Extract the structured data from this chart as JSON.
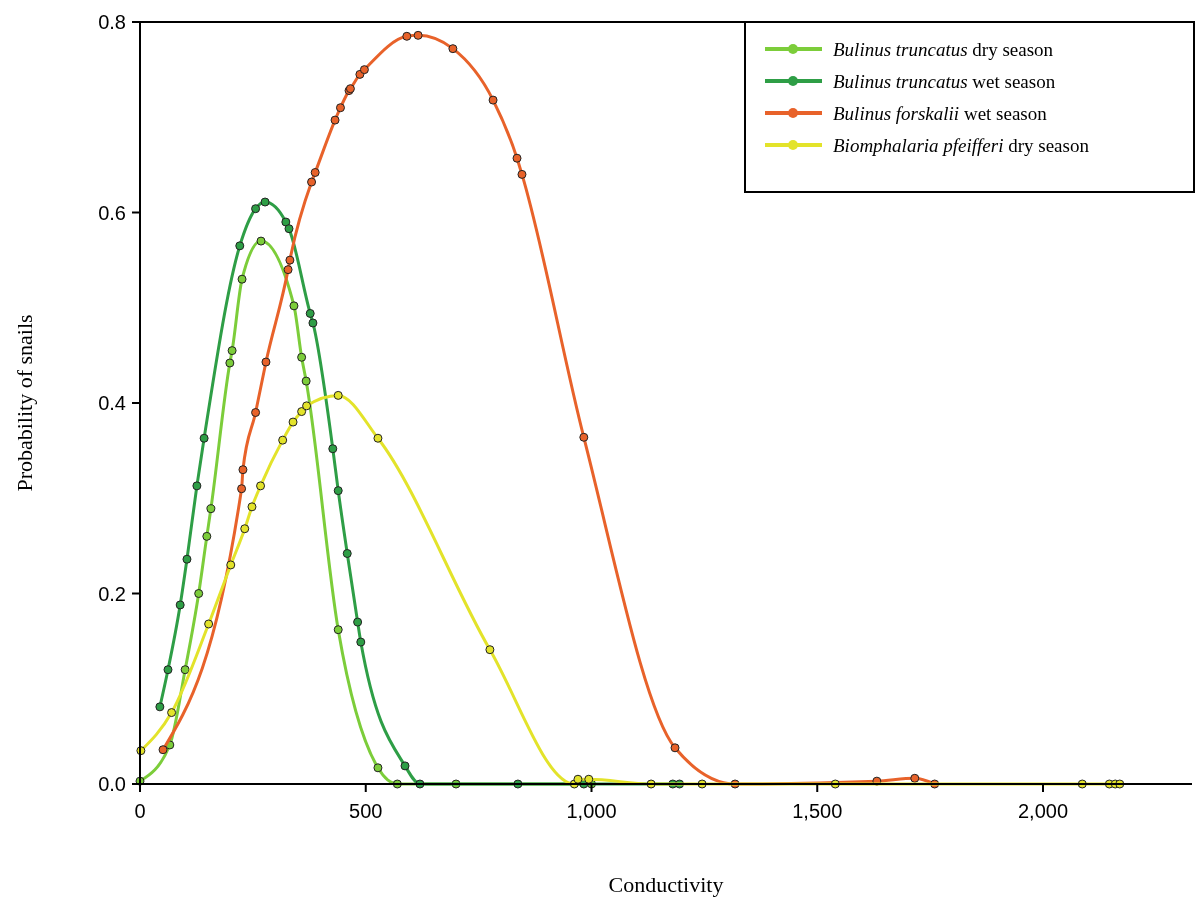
{
  "chart_data": {
    "type": "line",
    "xlabel": "Conductivity",
    "ylabel": "Probability of snails",
    "xlim": [
      0,
      2330
    ],
    "ylim": [
      0,
      0.8
    ],
    "xticks": [
      0,
      500,
      {
        "value": 1000,
        "label": "1,000"
      },
      {
        "value": 1500,
        "label": "1,500"
      },
      {
        "value": 2000,
        "label": "2,000"
      }
    ],
    "yticks": [
      {
        "value": 0,
        "label": "0.0"
      },
      {
        "value": 0.2,
        "label": "0.2"
      },
      {
        "value": 0.4,
        "label": "0.4"
      },
      {
        "value": 0.6,
        "label": "0.6"
      },
      {
        "value": 0.8,
        "label": "0.8"
      }
    ],
    "legend": "top right",
    "marker": "circle",
    "line_style": "solid",
    "grid": false,
    "series": [
      {
        "name": "Bulinus truncatus dry season",
        "color": "#7ccd3a",
        "x": [
          0,
          66,
          100,
          130,
          148,
          157,
          199,
          204,
          226,
          268,
          319,
          341,
          358,
          368,
          439,
          527,
          570,
          700,
          1000
        ],
        "values": [
          0.003,
          0.041,
          0.12,
          0.2,
          0.26,
          0.289,
          0.442,
          0.455,
          0.53,
          0.57,
          null,
          0.502,
          0.448,
          0.423,
          0.162,
          0.017,
          0,
          0,
          0
        ]
      },
      {
        "name": "Bulinus truncatus wet season",
        "color": "#2e9e46",
        "x": [
          44,
          62,
          89,
          104,
          126,
          142,
          221,
          256,
          277,
          323,
          330,
          377,
          383,
          427,
          439,
          459,
          482,
          489,
          587,
          620,
          837,
          983,
          1180,
          1195
        ],
        "values": [
          0.081,
          0.12,
          0.188,
          0.236,
          0.313,
          0.363,
          0.565,
          0.604,
          0.611,
          0.59,
          0.583,
          0.494,
          0.484,
          0.352,
          0.308,
          0.242,
          0.17,
          0.149,
          0.019,
          0,
          0,
          0,
          0,
          0
        ]
      },
      {
        "name": "Bulinus forskalii wet season",
        "color": "#e8622a",
        "x": [
          51,
          225,
          228,
          256,
          279,
          328,
          332,
          380,
          388,
          432,
          444,
          463,
          466,
          487,
          497,
          591,
          616,
          693,
          782,
          835,
          846,
          983,
          1185,
          1318,
          1632,
          1716,
          1760
        ],
        "values": [
          0.036,
          0.31,
          0.33,
          0.39,
          0.443,
          0.54,
          0.55,
          0.632,
          0.642,
          0.697,
          0.71,
          0.728,
          0.73,
          0.745,
          0.75,
          0.785,
          0.786,
          0.772,
          0.718,
          0.657,
          0.64,
          0.364,
          0.038,
          0,
          0.003,
          0.006,
          0
        ]
      },
      {
        "name": "Biomphalaria pfeifferi dry season",
        "color": "#e3e32a",
        "x": [
          2,
          70,
          152,
          201,
          232,
          248,
          267,
          316,
          339,
          358,
          369,
          439,
          527,
          775,
          962,
          970,
          994,
          1132,
          1245,
          1540,
          2087,
          2147,
          2160,
          2170
        ],
        "values": [
          0.035,
          0.075,
          0.168,
          0.23,
          0.268,
          0.291,
          0.313,
          0.361,
          0.38,
          0.391,
          0.397,
          0.408,
          0.363,
          0.141,
          0,
          0.005,
          0.005,
          0,
          0,
          0,
          0,
          0,
          0,
          0
        ]
      }
    ]
  }
}
